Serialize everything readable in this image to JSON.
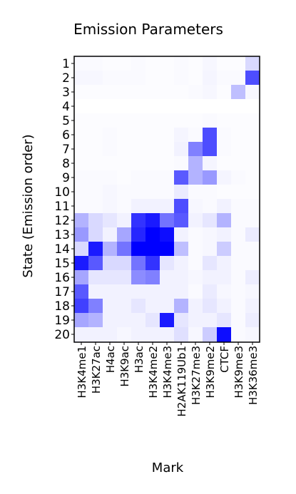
{
  "chart_data": {
    "type": "heatmap",
    "title": "Emission Parameters",
    "xlabel": "Mark",
    "ylabel": "State (Emission order)",
    "colors": {
      "low": "#ffffff",
      "high": "#0000ff"
    },
    "x_categories": [
      "H3K4me1",
      "H3K27ac",
      "H4ac",
      "H3K9ac",
      "H3ac",
      "H3K4me2",
      "H3K4me3",
      "H2AK119Ub1",
      "H3K27me3",
      "H3K9me2",
      "CTCF",
      "H3K9me3",
      "H3K36me3"
    ],
    "y_categories": [
      "1",
      "2",
      "3",
      "4",
      "5",
      "6",
      "7",
      "8",
      "9",
      "10",
      "11",
      "12",
      "13",
      "14",
      "15",
      "16",
      "17",
      "18",
      "19",
      "20"
    ],
    "values": [
      [
        0.02,
        0.02,
        0.01,
        0.01,
        0.02,
        0.01,
        0.01,
        0.02,
        0.01,
        0.03,
        0.01,
        0.01,
        0.15
      ],
      [
        0.03,
        0.03,
        0.02,
        0.02,
        0.02,
        0.01,
        0.01,
        0.02,
        0.01,
        0.04,
        0.02,
        0.02,
        0.7
      ],
      [
        0.01,
        0.01,
        0.01,
        0.01,
        0.01,
        0.01,
        0.01,
        0.01,
        0.02,
        0.03,
        0.01,
        0.25,
        0.03
      ],
      [
        0.0,
        0.0,
        0.0,
        0.0,
        0.0,
        0.0,
        0.0,
        0.0,
        0.0,
        0.0,
        0.0,
        0.0,
        0.0
      ],
      [
        0.01,
        0.01,
        0.01,
        0.01,
        0.01,
        0.01,
        0.01,
        0.01,
        0.01,
        0.02,
        0.01,
        0.01,
        0.01
      ],
      [
        0.01,
        0.01,
        0.02,
        0.01,
        0.01,
        0.01,
        0.01,
        0.04,
        0.02,
        0.7,
        0.02,
        0.01,
        0.01
      ],
      [
        0.01,
        0.01,
        0.02,
        0.01,
        0.01,
        0.01,
        0.01,
        0.05,
        0.5,
        0.7,
        0.02,
        0.01,
        0.01
      ],
      [
        0.01,
        0.01,
        0.01,
        0.01,
        0.01,
        0.01,
        0.01,
        0.02,
        0.3,
        0.04,
        0.01,
        0.01,
        0.01
      ],
      [
        0.02,
        0.02,
        0.02,
        0.01,
        0.02,
        0.02,
        0.02,
        0.65,
        0.3,
        0.4,
        0.04,
        0.02,
        0.01
      ],
      [
        0.02,
        0.02,
        0.03,
        0.02,
        0.02,
        0.02,
        0.02,
        0.08,
        0.02,
        0.02,
        0.01,
        0.01,
        0.01
      ],
      [
        0.02,
        0.02,
        0.03,
        0.02,
        0.05,
        0.05,
        0.05,
        0.7,
        0.03,
        0.02,
        0.05,
        0.02,
        0.02
      ],
      [
        0.3,
        0.15,
        0.1,
        0.05,
        0.8,
        0.9,
        0.55,
        0.65,
        0.05,
        0.1,
        0.3,
        0.02,
        0.02
      ],
      [
        0.4,
        0.15,
        0.05,
        0.35,
        0.85,
        1.0,
        0.95,
        0.05,
        0.02,
        0.03,
        0.05,
        0.02,
        0.08
      ],
      [
        0.15,
        0.9,
        0.3,
        0.55,
        1.0,
        1.0,
        1.0,
        0.25,
        0.02,
        0.03,
        0.2,
        0.02,
        0.02
      ],
      [
        0.9,
        0.65,
        0.15,
        0.15,
        0.55,
        0.8,
        0.1,
        0.05,
        0.02,
        0.1,
        0.05,
        0.02,
        0.02
      ],
      [
        0.35,
        0.1,
        0.1,
        0.1,
        0.45,
        0.5,
        0.05,
        0.05,
        0.03,
        0.05,
        0.05,
        0.02,
        0.07
      ],
      [
        0.65,
        0.05,
        0.05,
        0.05,
        0.05,
        0.05,
        0.05,
        0.05,
        0.02,
        0.08,
        0.03,
        0.02,
        0.03
      ],
      [
        0.75,
        0.5,
        0.05,
        0.05,
        0.1,
        0.05,
        0.05,
        0.3,
        0.05,
        0.1,
        0.05,
        0.02,
        0.05
      ],
      [
        0.35,
        0.3,
        0.05,
        0.05,
        0.05,
        0.1,
        0.9,
        0.1,
        0.05,
        0.05,
        0.1,
        0.02,
        0.07
      ],
      [
        0.05,
        0.05,
        0.05,
        0.03,
        0.05,
        0.05,
        0.05,
        0.12,
        0.03,
        0.2,
        0.95,
        0.02,
        0.03
      ]
    ]
  }
}
